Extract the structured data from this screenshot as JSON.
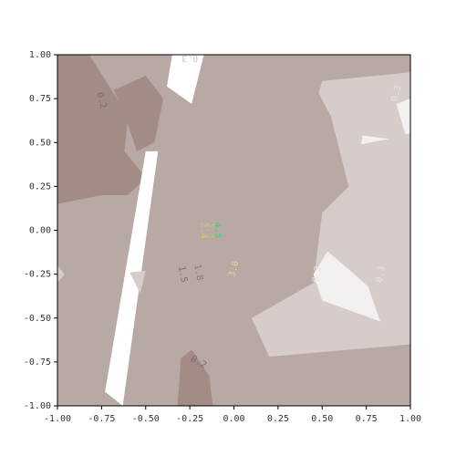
{
  "chart_data": {
    "type": "contour",
    "title": "",
    "xlabel": "",
    "ylabel": "",
    "xlim": [
      -1.0,
      1.0
    ],
    "ylim": [
      -1.0,
      1.0
    ],
    "grid": false,
    "legend": "none",
    "x_ticks": [
      {
        "value": -1.0,
        "label": "-1.00"
      },
      {
        "value": -0.75,
        "label": "-0.75"
      },
      {
        "value": -0.5,
        "label": "-0.50"
      },
      {
        "value": -0.25,
        "label": "-0.25"
      },
      {
        "value": 0.0,
        "label": "0.00"
      },
      {
        "value": 0.25,
        "label": "0.25"
      },
      {
        "value": 0.5,
        "label": "0.50"
      },
      {
        "value": 0.75,
        "label": "0.75"
      },
      {
        "value": 1.0,
        "label": "1.00"
      }
    ],
    "y_ticks": [
      {
        "value": 1.0,
        "label": "1.00"
      },
      {
        "value": 0.75,
        "label": "0.75"
      },
      {
        "value": 0.5,
        "label": "0.50"
      },
      {
        "value": 0.25,
        "label": "0.25"
      },
      {
        "value": 0.0,
        "label": "0.00"
      },
      {
        "value": -0.25,
        "label": "-0.25"
      },
      {
        "value": -0.5,
        "label": "-0.50"
      },
      {
        "value": -0.75,
        "label": "-0.75"
      },
      {
        "value": -1.0,
        "label": "-1.00"
      }
    ],
    "level_colors": {
      "dark": "#a38c86",
      "mid": "#b9a9a4",
      "light": "#d6ccc9",
      "lightest": "#f3f0ef",
      "white": "#ffffff"
    },
    "regions": [
      {
        "name": "base-mid",
        "level": "mid",
        "points": [
          [
            -1,
            -1
          ],
          [
            1,
            -1
          ],
          [
            1,
            1
          ],
          [
            -1,
            1
          ]
        ]
      },
      {
        "name": "top-left-dark",
        "level": "dark",
        "points": [
          [
            -1,
            1
          ],
          [
            -0.82,
            1
          ],
          [
            -0.6,
            0.65
          ],
          [
            -0.62,
            0.45
          ],
          [
            -0.5,
            0.3
          ],
          [
            -0.6,
            0.2
          ],
          [
            -0.75,
            0.2
          ],
          [
            -1,
            0.15
          ]
        ]
      },
      {
        "name": "top-dark",
        "level": "dark",
        "points": [
          [
            -0.68,
            0.8
          ],
          [
            -0.5,
            0.88
          ],
          [
            -0.4,
            0.75
          ],
          [
            -0.45,
            0.5
          ],
          [
            -0.55,
            0.45
          ],
          [
            -0.6,
            0.6
          ]
        ]
      },
      {
        "name": "top-right-white-strip",
        "level": "white",
        "points": [
          [
            -0.35,
            1
          ],
          [
            -0.17,
            1
          ],
          [
            -0.24,
            0.72
          ],
          [
            -0.38,
            0.82
          ]
        ]
      },
      {
        "name": "white-diagonal",
        "level": "white",
        "points": [
          [
            -0.5,
            0.45
          ],
          [
            -0.43,
            0.45
          ],
          [
            -0.63,
            -1
          ],
          [
            -0.73,
            -0.92
          ]
        ]
      },
      {
        "name": "right-light",
        "level": "light",
        "points": [
          [
            0.5,
            0.85
          ],
          [
            1,
            0.9
          ],
          [
            1,
            -0.65
          ],
          [
            0.2,
            -0.72
          ],
          [
            0.1,
            -0.5
          ],
          [
            0.45,
            -0.3
          ],
          [
            0.5,
            0.1
          ],
          [
            0.65,
            0.25
          ],
          [
            0.55,
            0.65
          ],
          [
            0.48,
            0.78
          ]
        ]
      },
      {
        "name": "right-lightest-top",
        "level": "lightest",
        "points": [
          [
            0.92,
            0.72
          ],
          [
            1,
            0.75
          ],
          [
            1,
            0.55
          ],
          [
            0.97,
            0.55
          ]
        ]
      },
      {
        "name": "right-lightest-center",
        "level": "lightest",
        "points": [
          [
            0.53,
            -0.12
          ],
          [
            0.66,
            -0.23
          ],
          [
            0.76,
            -0.32
          ],
          [
            0.83,
            -0.52
          ],
          [
            0.5,
            -0.4
          ],
          [
            0.45,
            -0.25
          ]
        ]
      },
      {
        "name": "right-lightest-spot",
        "level": "lightest",
        "points": [
          [
            0.73,
            0.54
          ],
          [
            0.88,
            0.52
          ],
          [
            0.72,
            0.49
          ]
        ]
      },
      {
        "name": "left-small-light",
        "level": "light",
        "points": [
          [
            -1,
            -0.2
          ],
          [
            -0.96,
            -0.25
          ],
          [
            -1,
            -0.3
          ]
        ]
      },
      {
        "name": "bottom-dark",
        "level": "dark",
        "points": [
          [
            -0.3,
            -0.73
          ],
          [
            -0.24,
            -0.68
          ],
          [
            -0.14,
            -0.83
          ],
          [
            -0.12,
            -1
          ],
          [
            -0.32,
            -1
          ]
        ]
      },
      {
        "name": "left-center-light",
        "level": "light",
        "points": [
          [
            -0.59,
            -0.24
          ],
          [
            -0.53,
            -0.36
          ],
          [
            -0.5,
            -0.23
          ]
        ]
      }
    ],
    "contour_labels": [
      {
        "text": "0.2",
        "x": -0.75,
        "y": 0.74,
        "color": "#7a6b66",
        "rotate": 75
      },
      {
        "text": "0.3",
        "x": -0.25,
        "y": 0.98,
        "color": "#cfc5c2",
        "rotate": 180
      },
      {
        "text": "0.3",
        "x": 0.92,
        "y": 0.78,
        "color": "#e9e3e1",
        "rotate": -75
      },
      {
        "text": "0.3",
        "x": 0.47,
        "y": -0.25,
        "color": "#e9e3e1",
        "rotate": -80
      },
      {
        "text": "0.3",
        "x": 0.83,
        "y": -0.25,
        "color": "#e9e3e1",
        "rotate": -80
      },
      {
        "text": "0.2",
        "x": -0.2,
        "y": -0.75,
        "color": "#7a6b66",
        "rotate": 30
      },
      {
        "text": "1.5",
        "x": -0.29,
        "y": -0.25,
        "color": "#7a6f62",
        "rotate": 80
      },
      {
        "text": "1.8",
        "x": -0.2,
        "y": -0.24,
        "color": "#8a7d66",
        "rotate": 80
      },
      {
        "text": "3.0",
        "x": 0.0,
        "y": -0.22,
        "color": "#e8d890",
        "rotate": -75
      },
      {
        "text": "2.4",
        "x": -0.17,
        "y": 0.0,
        "color": "#d8c87a",
        "rotate": 90
      },
      {
        "text": "3.3",
        "x": -0.13,
        "y": 0.0,
        "color": "#b6c87a",
        "rotate": 90
      },
      {
        "text": "4.5",
        "x": -0.09,
        "y": 0.0,
        "color": "#4fc38a",
        "rotate": 90
      }
    ]
  }
}
